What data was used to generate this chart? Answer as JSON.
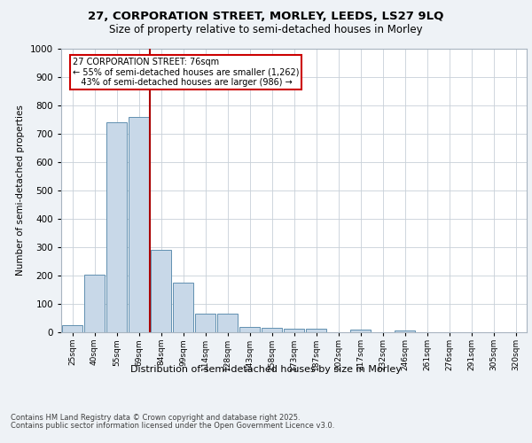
{
  "title_line1": "27, CORPORATION STREET, MORLEY, LEEDS, LS27 9LQ",
  "title_line2": "Size of property relative to semi-detached houses in Morley",
  "xlabel": "Distribution of semi-detached houses by size in Morley",
  "ylabel": "Number of semi-detached properties",
  "categories": [
    "25sqm",
    "40sqm",
    "55sqm",
    "69sqm",
    "84sqm",
    "99sqm",
    "114sqm",
    "128sqm",
    "143sqm",
    "158sqm",
    "173sqm",
    "187sqm",
    "202sqm",
    "217sqm",
    "232sqm",
    "246sqm",
    "261sqm",
    "276sqm",
    "291sqm",
    "305sqm",
    "320sqm"
  ],
  "values": [
    25,
    203,
    740,
    760,
    290,
    176,
    65,
    65,
    20,
    16,
    12,
    12,
    0,
    8,
    0,
    5,
    0,
    0,
    0,
    0,
    0
  ],
  "bar_color": "#c8d8e8",
  "bar_edge_color": "#6090b0",
  "vline_x_index": 3,
  "vline_color": "#aa0000",
  "annotation_text": "27 CORPORATION STREET: 76sqm\n← 55% of semi-detached houses are smaller (1,262)\n   43% of semi-detached houses are larger (986) →",
  "annotation_box_color": "#ffffff",
  "annotation_box_edge_color": "#cc0000",
  "ylim": [
    0,
    1000
  ],
  "yticks": [
    0,
    100,
    200,
    300,
    400,
    500,
    600,
    700,
    800,
    900,
    1000
  ],
  "footer_line1": "Contains HM Land Registry data © Crown copyright and database right 2025.",
  "footer_line2": "Contains public sector information licensed under the Open Government Licence v3.0.",
  "bg_color": "#eef2f6",
  "plot_bg_color": "#ffffff",
  "grid_color": "#c8d0d8"
}
